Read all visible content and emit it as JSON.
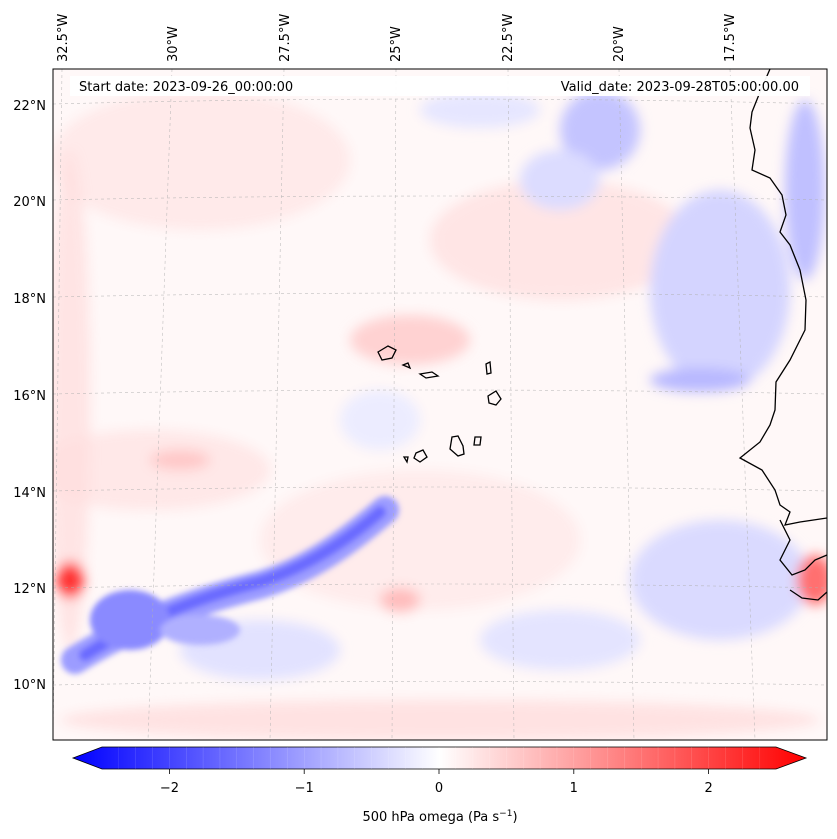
{
  "map": {
    "start_label": "Start date: 2023-09-26_00:00:00",
    "valid_label": "Valid_date: 2023-09-28T05:00:00.00",
    "lon_labels": [
      "32.5°W",
      "30°W",
      "27.5°W",
      "25°W",
      "22.5°W",
      "20°W",
      "17.5°W"
    ],
    "lat_labels": [
      "22°N",
      "20°N",
      "18°N",
      "16°N",
      "14°N",
      "12°N",
      "10°N"
    ],
    "field": "500 hPa omega",
    "extent": {
      "lon_min": -32.7,
      "lon_max": -16.4,
      "lat_min": 8.9,
      "lat_max": 22.8
    },
    "islands_name": "Cabo Verde",
    "features": [
      {
        "name": "easterly-wave-negative-band",
        "sign": "negative",
        "description_free": true
      },
      {
        "name": "positive-maximum-west",
        "sign": "positive"
      },
      {
        "name": "positive-maximum-coast",
        "sign": "positive"
      }
    ]
  },
  "colorbar": {
    "ticks": [
      "−2",
      "−1",
      "0",
      "1",
      "2"
    ],
    "tick_values": [
      -2,
      -1,
      0,
      1,
      2
    ],
    "range": [
      -2.5,
      2.5
    ],
    "label": "500 hPa omega (Pa s",
    "label_sup": "−1",
    "label_end": ")",
    "colormap": "bwr",
    "low_color": "#0000ff",
    "mid_color": "#ffffff",
    "high_color": "#ff0000"
  }
}
